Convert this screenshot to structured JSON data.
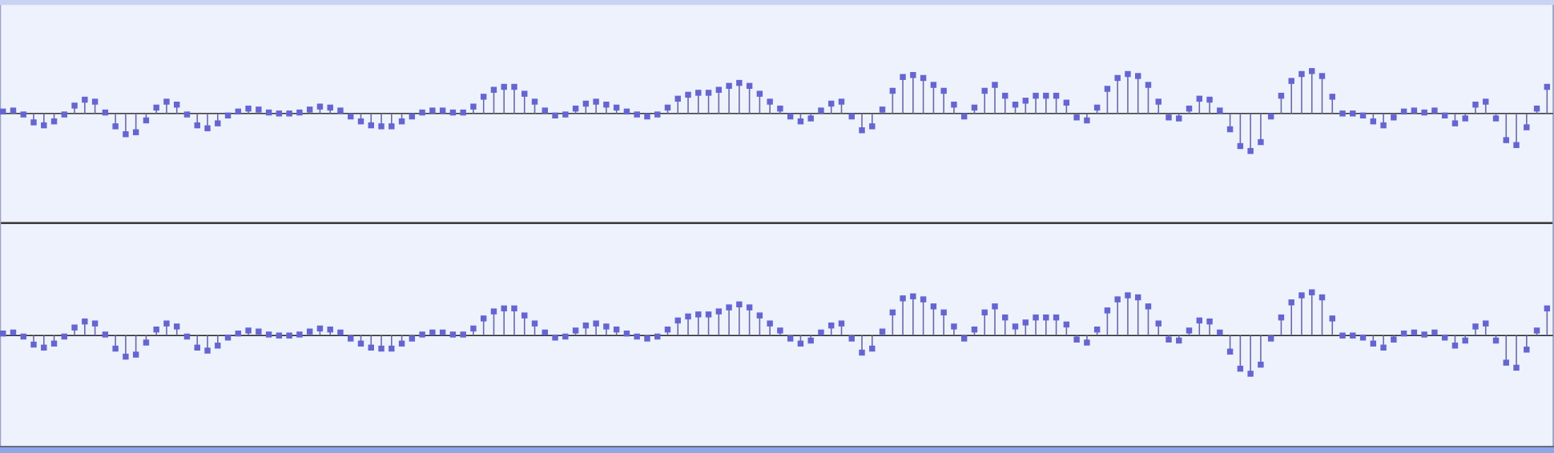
{
  "chart_data": [
    {
      "type": "stem",
      "ylim": [
        -110,
        110
      ],
      "color": "#6565d2",
      "values": [
        2,
        3,
        -1,
        -9,
        -12,
        -8,
        -1,
        8,
        14,
        12,
        1,
        -13,
        -21,
        -19,
        -7,
        6,
        12,
        9,
        -1,
        -12,
        -15,
        -10,
        -2,
        2,
        5,
        4,
        1,
        0,
        0,
        1,
        4,
        7,
        6,
        3,
        -3,
        -8,
        -12,
        -13,
        -13,
        -8,
        -3,
        1,
        3,
        3,
        1,
        1,
        7,
        17,
        24,
        27,
        27,
        20,
        12,
        3,
        -2,
        -1,
        5,
        10,
        12,
        9,
        6,
        2,
        -1,
        -3,
        -1,
        6,
        15,
        19,
        21,
        21,
        24,
        28,
        31,
        28,
        20,
        12,
        5,
        -3,
        -8,
        -5,
        3,
        10,
        12,
        -3,
        -17,
        -13,
        4,
        23,
        37,
        39,
        36,
        29,
        23,
        9,
        -3,
        6,
        23,
        29,
        18,
        9,
        13,
        18,
        18,
        18,
        11,
        -4,
        -7,
        6,
        25,
        36,
        40,
        38,
        29,
        12,
        -4,
        -5,
        5,
        15,
        14,
        3,
        -16,
        -33,
        -38,
        -29,
        -3,
        18,
        33,
        40,
        43,
        38,
        17,
        0,
        0,
        -2,
        -8,
        -12,
        -4,
        2,
        3,
        1,
        3,
        -2,
        -10,
        -5,
        9,
        12,
        -5,
        -27,
        -32,
        -14,
        5,
        27
      ]
    },
    {
      "type": "stem",
      "ylim": [
        -110,
        110
      ],
      "color": "#6565d2",
      "values": [
        2,
        3,
        -1,
        -9,
        -12,
        -8,
        -1,
        8,
        14,
        12,
        1,
        -13,
        -21,
        -19,
        -7,
        6,
        12,
        9,
        -1,
        -12,
        -15,
        -10,
        -2,
        2,
        5,
        4,
        1,
        0,
        0,
        1,
        4,
        7,
        6,
        3,
        -3,
        -8,
        -12,
        -13,
        -13,
        -8,
        -3,
        1,
        3,
        3,
        1,
        1,
        7,
        17,
        24,
        27,
        27,
        20,
        12,
        3,
        -2,
        -1,
        5,
        10,
        12,
        9,
        6,
        2,
        -1,
        -3,
        -1,
        6,
        15,
        19,
        21,
        21,
        24,
        28,
        31,
        28,
        20,
        12,
        5,
        -3,
        -8,
        -5,
        3,
        10,
        12,
        -3,
        -17,
        -13,
        4,
        23,
        37,
        39,
        36,
        29,
        23,
        9,
        -3,
        6,
        23,
        29,
        18,
        9,
        13,
        18,
        18,
        18,
        11,
        -4,
        -7,
        6,
        25,
        36,
        40,
        38,
        29,
        12,
        -4,
        -5,
        5,
        15,
        14,
        3,
        -16,
        -33,
        -38,
        -29,
        -3,
        18,
        33,
        40,
        43,
        38,
        17,
        0,
        0,
        -2,
        -8,
        -12,
        -4,
        2,
        3,
        1,
        3,
        -2,
        -10,
        -5,
        9,
        12,
        -5,
        -27,
        -32,
        -14,
        5,
        27
      ]
    }
  ]
}
